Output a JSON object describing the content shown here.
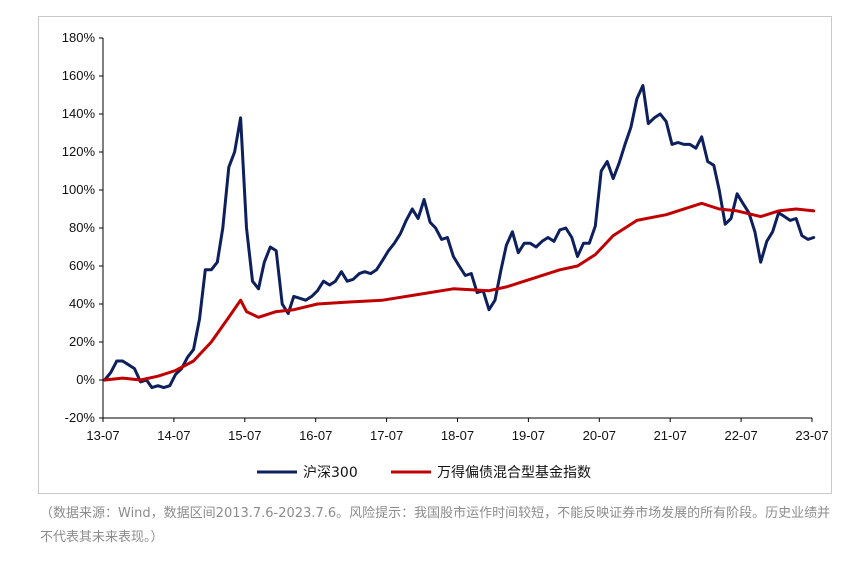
{
  "chart_data": {
    "type": "line",
    "title": "",
    "xlabel": "",
    "ylabel": "",
    "x_ticks": [
      "13-07",
      "14-07",
      "15-07",
      "16-07",
      "17-07",
      "18-07",
      "19-07",
      "20-07",
      "21-07",
      "22-07",
      "23-07"
    ],
    "y_ticks": [
      "-20%",
      "0%",
      "20%",
      "40%",
      "60%",
      "80%",
      "100%",
      "120%",
      "140%",
      "160%",
      "180%"
    ],
    "ylim": [
      -20,
      180
    ],
    "xlim": [
      "2013-07-06",
      "2023-07-06"
    ],
    "grid": false,
    "legend_position": "bottom",
    "series": [
      {
        "name": "沪深300",
        "color": "#0d1f5c",
        "points": [
          [
            "2013-07",
            0
          ],
          [
            "2013-08",
            4
          ],
          [
            "2013-09",
            10
          ],
          [
            "2013-10",
            10
          ],
          [
            "2013-11",
            8
          ],
          [
            "2013-12",
            6
          ],
          [
            "2014-01",
            -1
          ],
          [
            "2014-02",
            0
          ],
          [
            "2014-03",
            -4
          ],
          [
            "2014-04",
            -3
          ],
          [
            "2014-05",
            -4
          ],
          [
            "2014-06",
            -3
          ],
          [
            "2014-07",
            3
          ],
          [
            "2014-08",
            6
          ],
          [
            "2014-09",
            12
          ],
          [
            "2014-10",
            16
          ],
          [
            "2014-11",
            32
          ],
          [
            "2014-12",
            58
          ],
          [
            "2015-01",
            58
          ],
          [
            "2015-02",
            62
          ],
          [
            "2015-03",
            80
          ],
          [
            "2015-04",
            112
          ],
          [
            "2015-05",
            120
          ],
          [
            "2015-06",
            138
          ],
          [
            "2015-07",
            80
          ],
          [
            "2015-08",
            52
          ],
          [
            "2015-09",
            48
          ],
          [
            "2015-10",
            62
          ],
          [
            "2015-11",
            70
          ],
          [
            "2015-12",
            68
          ],
          [
            "2016-01",
            40
          ],
          [
            "2016-02",
            35
          ],
          [
            "2016-03",
            44
          ],
          [
            "2016-04",
            43
          ],
          [
            "2016-05",
            42
          ],
          [
            "2016-06",
            44
          ],
          [
            "2016-07",
            47
          ],
          [
            "2016-08",
            52
          ],
          [
            "2016-09",
            50
          ],
          [
            "2016-10",
            52
          ],
          [
            "2016-11",
            57
          ],
          [
            "2016-12",
            52
          ],
          [
            "2017-01",
            53
          ],
          [
            "2017-02",
            56
          ],
          [
            "2017-03",
            57
          ],
          [
            "2017-04",
            56
          ],
          [
            "2017-05",
            58
          ],
          [
            "2017-06",
            63
          ],
          [
            "2017-07",
            68
          ],
          [
            "2017-08",
            72
          ],
          [
            "2017-09",
            77
          ],
          [
            "2017-10",
            84
          ],
          [
            "2017-11",
            90
          ],
          [
            "2017-12",
            85
          ],
          [
            "2018-01",
            95
          ],
          [
            "2018-02",
            83
          ],
          [
            "2018-03",
            80
          ],
          [
            "2018-04",
            74
          ],
          [
            "2018-05",
            75
          ],
          [
            "2018-06",
            65
          ],
          [
            "2018-07",
            60
          ],
          [
            "2018-08",
            55
          ],
          [
            "2018-09",
            56
          ],
          [
            "2018-10",
            46
          ],
          [
            "2018-11",
            47
          ],
          [
            "2018-12",
            37
          ],
          [
            "2019-01",
            42
          ],
          [
            "2019-02",
            58
          ],
          [
            "2019-03",
            71
          ],
          [
            "2019-04",
            78
          ],
          [
            "2019-05",
            67
          ],
          [
            "2019-06",
            72
          ],
          [
            "2019-07",
            72
          ],
          [
            "2019-08",
            70
          ],
          [
            "2019-09",
            73
          ],
          [
            "2019-10",
            75
          ],
          [
            "2019-11",
            73
          ],
          [
            "2019-12",
            79
          ],
          [
            "2020-01",
            80
          ],
          [
            "2020-02",
            75
          ],
          [
            "2020-03",
            65
          ],
          [
            "2020-04",
            72
          ],
          [
            "2020-05",
            72
          ],
          [
            "2020-06",
            81
          ],
          [
            "2020-07",
            110
          ],
          [
            "2020-08",
            115
          ],
          [
            "2020-09",
            106
          ],
          [
            "2020-10",
            114
          ],
          [
            "2020-11",
            124
          ],
          [
            "2020-12",
            133
          ],
          [
            "2021-01",
            148
          ],
          [
            "2021-02",
            155
          ],
          [
            "2021-03",
            135
          ],
          [
            "2021-04",
            138
          ],
          [
            "2021-05",
            140
          ],
          [
            "2021-06",
            136
          ],
          [
            "2021-07",
            124
          ],
          [
            "2021-08",
            125
          ],
          [
            "2021-09",
            124
          ],
          [
            "2021-10",
            124
          ],
          [
            "2021-11",
            122
          ],
          [
            "2021-12",
            128
          ],
          [
            "2022-01",
            115
          ],
          [
            "2022-02",
            113
          ],
          [
            "2022-03",
            100
          ],
          [
            "2022-04",
            82
          ],
          [
            "2022-05",
            85
          ],
          [
            "2022-06",
            98
          ],
          [
            "2022-07",
            93
          ],
          [
            "2022-08",
            88
          ],
          [
            "2022-09",
            78
          ],
          [
            "2022-10",
            62
          ],
          [
            "2022-11",
            73
          ],
          [
            "2022-12",
            78
          ],
          [
            "2023-01",
            88
          ],
          [
            "2023-02",
            86
          ],
          [
            "2023-03",
            84
          ],
          [
            "2023-04",
            85
          ],
          [
            "2023-05",
            76
          ],
          [
            "2023-06",
            74
          ],
          [
            "2023-07",
            75
          ]
        ]
      },
      {
        "name": "万得偏债混合型基金指数",
        "color": "#c00000",
        "points": [
          [
            "2013-07",
            0
          ],
          [
            "2013-10",
            1
          ],
          [
            "2014-01",
            0
          ],
          [
            "2014-04",
            2
          ],
          [
            "2014-07",
            5
          ],
          [
            "2014-10",
            10
          ],
          [
            "2015-01",
            20
          ],
          [
            "2015-04",
            33
          ],
          [
            "2015-06",
            42
          ],
          [
            "2015-07",
            36
          ],
          [
            "2015-09",
            33
          ],
          [
            "2015-12",
            36
          ],
          [
            "2016-03",
            37
          ],
          [
            "2016-07",
            40
          ],
          [
            "2016-12",
            41
          ],
          [
            "2017-06",
            42
          ],
          [
            "2017-12",
            45
          ],
          [
            "2018-06",
            48
          ],
          [
            "2018-12",
            47
          ],
          [
            "2019-03",
            49
          ],
          [
            "2019-06",
            52
          ],
          [
            "2019-12",
            58
          ],
          [
            "2020-03",
            60
          ],
          [
            "2020-06",
            66
          ],
          [
            "2020-09",
            76
          ],
          [
            "2021-01",
            84
          ],
          [
            "2021-06",
            87
          ],
          [
            "2021-12",
            93
          ],
          [
            "2022-03",
            90
          ],
          [
            "2022-06",
            89
          ],
          [
            "2022-10",
            86
          ],
          [
            "2023-01",
            89
          ],
          [
            "2023-04",
            90
          ],
          [
            "2023-07",
            89
          ]
        ]
      }
    ]
  },
  "note": {
    "text": "（数据来源：Wind，数据区间2013.7.6-2023.7.6。风险提示：我国股市运作时间较短，不能反映证券市场发展的所有阶段。历史业绩并不代表其未来表现。）"
  }
}
